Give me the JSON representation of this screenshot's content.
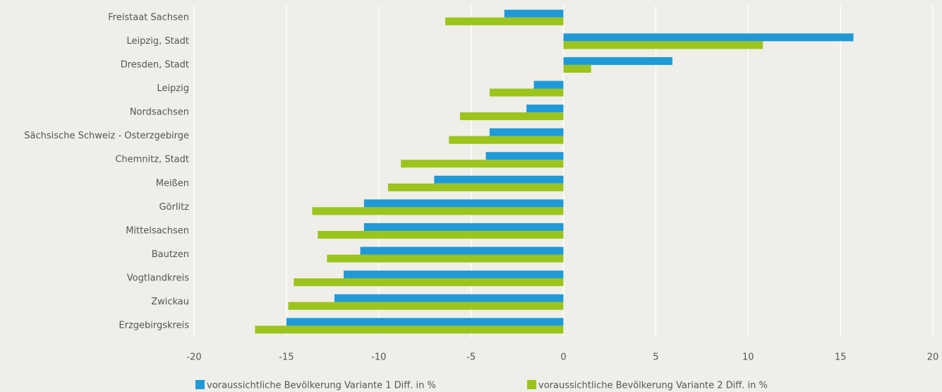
{
  "chart_data": {
    "type": "barh",
    "categories": [
      "Freistaat Sachsen",
      "Leipzig, Stadt",
      "Dresden, Stadt",
      "Leipzig",
      "Nordsachsen",
      "Sächsische Schweiz - Osterzgebirge",
      "Chemnitz, Stadt",
      "Meißen",
      "Görlitz",
      "Mittelsachsen",
      "Bautzen",
      "Vogtlandkreis",
      "Zwickau",
      "Erzgebirgskreis"
    ],
    "series": [
      {
        "name": "voraussichtliche Bevölkerung Variante 1 Diff. in %",
        "color": "#1f9ad6",
        "values": [
          -3.2,
          15.7,
          5.9,
          -1.6,
          -2.0,
          -4.0,
          -4.2,
          -7.0,
          -10.8,
          -10.8,
          -11.0,
          -11.9,
          -12.4,
          -15.0
        ]
      },
      {
        "name": "voraussichtliche Bevölkerung Variante 2 Diff. in %",
        "color": "#9bc41c",
        "values": [
          -6.4,
          10.8,
          1.5,
          -4.0,
          -5.6,
          -6.2,
          -8.8,
          -9.5,
          -13.6,
          -13.3,
          -12.8,
          -14.6,
          -14.9,
          -16.7
        ]
      }
    ],
    "xlim": [
      -20,
      20
    ],
    "xticks": [
      -20,
      -15,
      -10,
      -5,
      0,
      5,
      10,
      15,
      20
    ],
    "grid": true
  }
}
